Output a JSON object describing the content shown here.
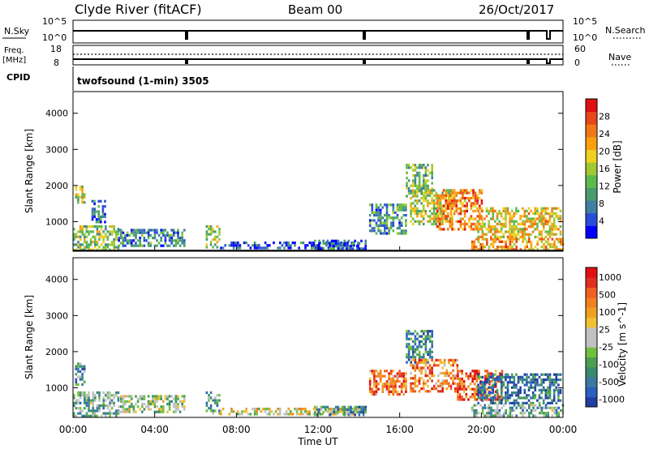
{
  "header": {
    "title_left": "Clyde River (fitACF)",
    "title_center": "Beam 00",
    "title_right": "26/Oct/2017"
  },
  "ops": {
    "nsky_label": "N.Sky",
    "nsky_top_tick": "10^5",
    "nsky_bottom_tick": "10^0",
    "nsearch_label": "N.Search",
    "nsearch_top_tick": "10^5",
    "nsearch_bottom_tick": "10^0",
    "freq_label_line1": "Freq.",
    "freq_label_line2": "[MHz]",
    "freq_top_tick": "18",
    "freq_bottom_tick": "8",
    "nave_label": "Nave",
    "nave_top_tick": "60",
    "nave_bottom_tick": "0",
    "cpid_label": "CPID",
    "cpid_value": "twofsound (1-min) 3505"
  },
  "chart_data": [
    {
      "type": "heatmap",
      "parameter": "Power",
      "xlabel": "Time UT",
      "ylabel": "Slant Range [km]",
      "xticks": [
        "00:00",
        "04:00",
        "08:00",
        "12:00",
        "16:00",
        "20:00",
        "00:00"
      ],
      "xlim_hours": [
        0,
        24
      ],
      "ylim_km": [
        180,
        4600
      ],
      "yticks": [
        1000,
        2000,
        3000,
        4000
      ],
      "colorbar": {
        "label": "Power [dB]",
        "range": [
          0,
          32
        ],
        "ticks": [
          4,
          8,
          12,
          16,
          20,
          24,
          28
        ],
        "colors": [
          "#0000ff",
          "#2a4dd8",
          "#3f7fa0",
          "#4a9a70",
          "#5cba4a",
          "#a0c832",
          "#f0d020",
          "#f8a010",
          "#f07818",
          "#e84818",
          "#e01010"
        ]
      },
      "echo_regions": [
        {
          "t0": 0.0,
          "t1": 2.2,
          "r0": 250,
          "r1": 900,
          "level": 0.45
        },
        {
          "t0": 0.1,
          "t1": 0.6,
          "r0": 1500,
          "r1": 2000,
          "level": 0.5
        },
        {
          "t0": 0.9,
          "t1": 1.6,
          "r0": 1000,
          "r1": 1600,
          "level": 0.2
        },
        {
          "t0": 2.2,
          "t1": 5.5,
          "r0": 300,
          "r1": 800,
          "level": 0.25
        },
        {
          "t0": 6.5,
          "t1": 7.2,
          "r0": 300,
          "r1": 900,
          "level": 0.5
        },
        {
          "t0": 7.2,
          "t1": 14.0,
          "r0": 250,
          "r1": 450,
          "level": 0.15
        },
        {
          "t0": 11.8,
          "t1": 14.3,
          "r0": 250,
          "r1": 500,
          "level": 0.2
        },
        {
          "t0": 14.5,
          "t1": 16.3,
          "r0": 700,
          "r1": 1500,
          "level": 0.3
        },
        {
          "t0": 16.3,
          "t1": 17.6,
          "r0": 1700,
          "r1": 2600,
          "level": 0.4
        },
        {
          "t0": 16.5,
          "t1": 18.5,
          "r0": 900,
          "r1": 1900,
          "level": 0.5
        },
        {
          "t0": 17.8,
          "t1": 20.0,
          "r0": 800,
          "r1": 1900,
          "level": 0.75
        },
        {
          "t0": 19.8,
          "t1": 23.9,
          "r0": 600,
          "r1": 1400,
          "level": 0.6
        },
        {
          "t0": 19.5,
          "t1": 24.0,
          "r0": 250,
          "r1": 550,
          "level": 0.7
        }
      ]
    },
    {
      "type": "heatmap",
      "parameter": "Velocity",
      "xlabel": "Time UT",
      "ylabel": "Slant Range [km]",
      "xticks": [
        "00:00",
        "04:00",
        "08:00",
        "12:00",
        "16:00",
        "20:00",
        "00:00"
      ],
      "xlim_hours": [
        0,
        24
      ],
      "ylim_km": [
        180,
        4600
      ],
      "yticks": [
        1000,
        2000,
        3000,
        4000
      ],
      "colorbar": {
        "label": "Velocity [m s^-1]",
        "tick_labels": [
          "1000",
          "500",
          "100",
          "25",
          "-25",
          "-100",
          "-500",
          "-1000"
        ],
        "colors": [
          "#2040a0",
          "#2a60c0",
          "#3a7aa0",
          "#3a8a70",
          "#4aa050",
          "#70c040",
          "#c0c0c0",
          "#c0c0c0",
          "#f0c030",
          "#f0a020",
          "#f08020",
          "#f06020",
          "#e03020",
          "#e01010"
        ]
      },
      "echo_regions": [
        {
          "t0": 0.0,
          "t1": 2.2,
          "r0": 250,
          "r1": 900,
          "level": 0.35
        },
        {
          "t0": 0.1,
          "t1": 0.6,
          "r0": 1100,
          "r1": 1700,
          "level": 0.25
        },
        {
          "t0": 2.2,
          "t1": 5.5,
          "r0": 300,
          "r1": 800,
          "level": 0.45
        },
        {
          "t0": 6.5,
          "t1": 7.2,
          "r0": 300,
          "r1": 900,
          "level": 0.3
        },
        {
          "t0": 7.2,
          "t1": 14.0,
          "r0": 250,
          "r1": 450,
          "level": 0.55
        },
        {
          "t0": 11.8,
          "t1": 14.3,
          "r0": 250,
          "r1": 500,
          "level": 0.25
        },
        {
          "t0": 14.5,
          "t1": 16.3,
          "r0": 800,
          "r1": 1500,
          "level": 0.78
        },
        {
          "t0": 16.3,
          "t1": 17.6,
          "r0": 1700,
          "r1": 2600,
          "level": 0.2
        },
        {
          "t0": 16.5,
          "t1": 18.8,
          "r0": 900,
          "r1": 1800,
          "level": 0.75
        },
        {
          "t0": 18.8,
          "t1": 21.0,
          "r0": 700,
          "r1": 1500,
          "level": 0.85
        },
        {
          "t0": 19.8,
          "t1": 23.9,
          "r0": 600,
          "r1": 1400,
          "level": 0.15
        },
        {
          "t0": 19.5,
          "t1": 24.0,
          "r0": 250,
          "r1": 550,
          "level": 0.35
        }
      ]
    }
  ]
}
